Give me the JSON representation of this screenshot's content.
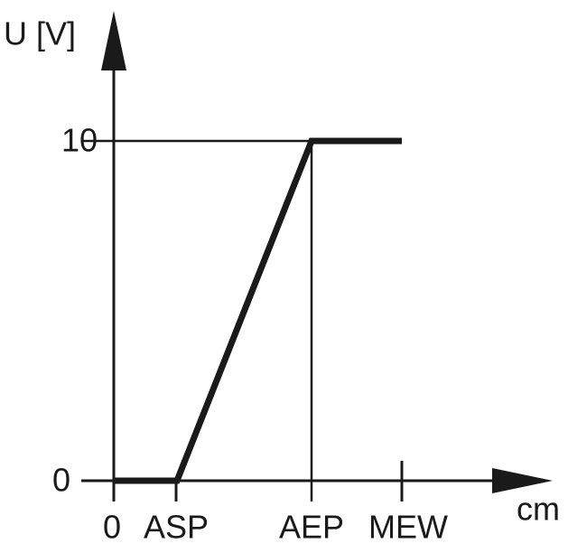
{
  "axes": {
    "y_label": "U [V]",
    "x_unit": "cm"
  },
  "y_ticks": [
    "10",
    "0"
  ],
  "x_ticks": [
    "0",
    "ASP",
    "AEP",
    "MEW"
  ]
}
